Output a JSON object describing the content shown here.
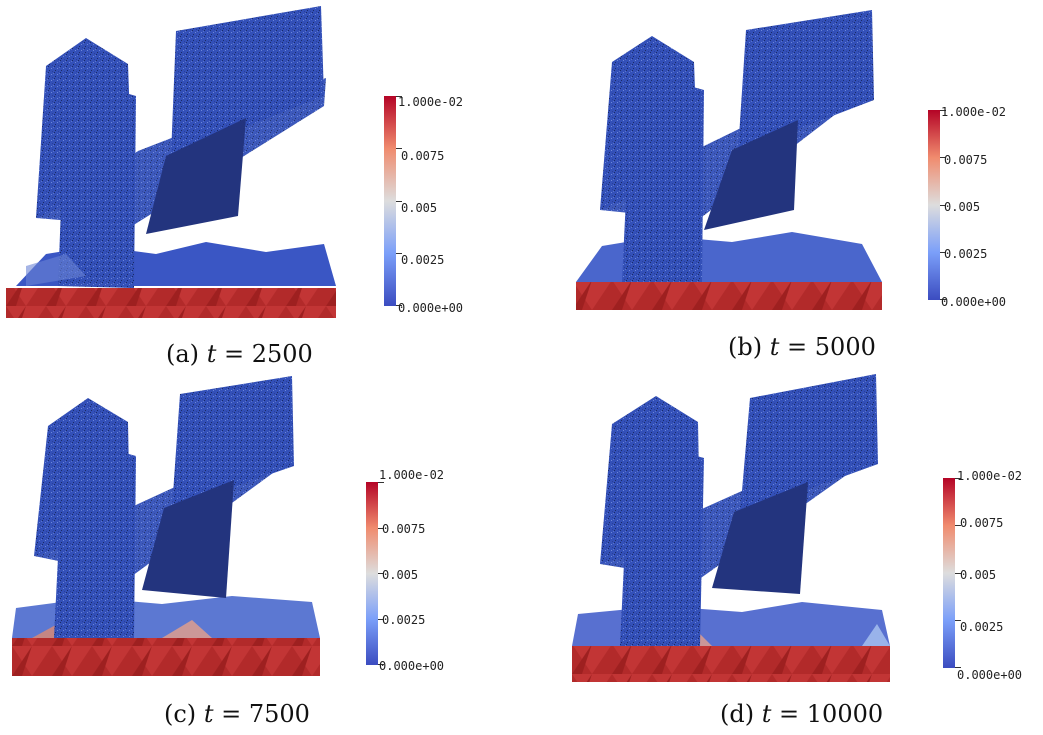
{
  "colormap": {
    "low_color": "#3b4cc0",
    "mid_color": "#dddddd",
    "high_color": "#b40426",
    "tick_labels": [
      "1.000e-02",
      "0.0075",
      "0.005",
      "0.0025",
      "0.000e+00"
    ]
  },
  "panels": [
    {
      "letter": "(a)",
      "var": "t",
      "eq": "=",
      "value": "2500"
    },
    {
      "letter": "(b)",
      "var": "t",
      "eq": "=",
      "value": "5000"
    },
    {
      "letter": "(c)",
      "var": "t",
      "eq": "=",
      "value": "7500"
    },
    {
      "letter": "(d)",
      "var": "t",
      "eq": "=",
      "value": "10000"
    }
  ]
}
